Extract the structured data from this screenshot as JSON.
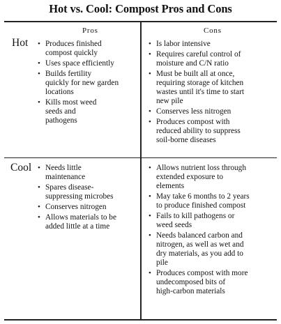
{
  "title": "Hot vs. Cool: Compost Pros and Cons",
  "columns": {
    "pros": "Pros",
    "cons": "Cons"
  },
  "rows": [
    {
      "label": "Hot",
      "pros": [
        "Produces finished\ncompost quickly",
        "Uses space efficiently",
        "Builds fertility\nquickly for new garden\nlocations",
        "Kills most weed\nseeds and\npathogens"
      ],
      "cons": [
        "Is labor intensive",
        "Requires careful control of\nmoisture and C/N ratio",
        "Must be built all at once,\nrequiring storage of kitchen\nwastes until it's time to start\nnew pile",
        "Conserves less nitrogen",
        "Produces compost with\nreduced ability to suppress\nsoil-borne diseases"
      ]
    },
    {
      "label": "Cool",
      "pros": [
        "Needs little\nmaintenance",
        "Spares disease-\nsuppressing microbes",
        "Conserves nitrogen",
        "Allows materials to be\nadded little at a time"
      ],
      "cons": [
        "Allows nutrient loss through\nextended exposure to\nelements",
        "May take 6 months to 2 years\nto produce finished compost",
        "Fails to kill pathogens or\nweed seeds",
        "Needs balanced carbon and\nnitrogen, as well as wet and\ndry materials, as you add to\npile",
        "Produces compost with more\nundecomposed bits of\nhigh-carbon materials"
      ]
    }
  ]
}
